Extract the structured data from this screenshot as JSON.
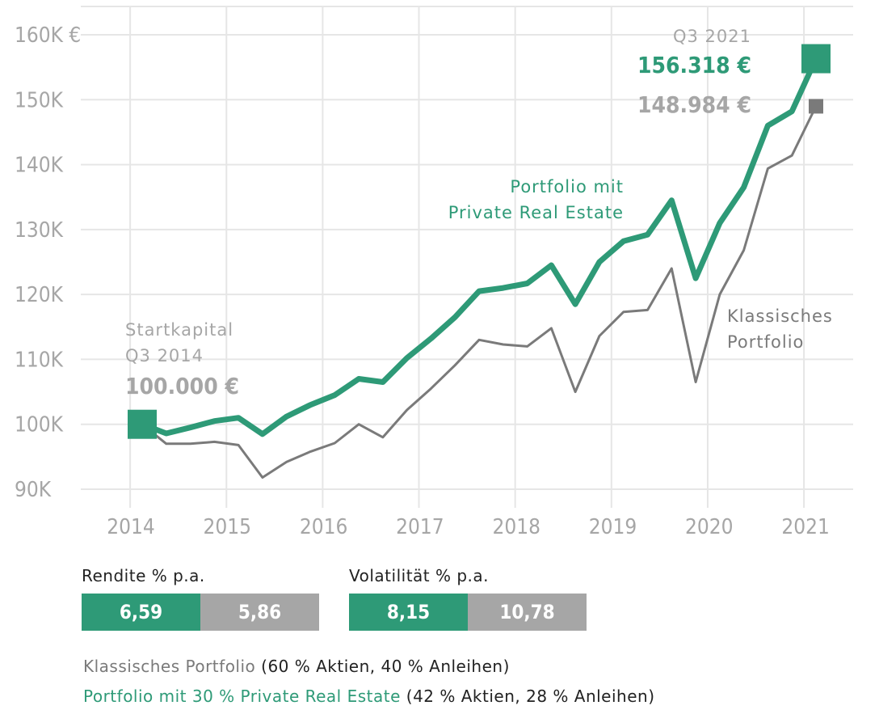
{
  "chart_data": {
    "type": "line",
    "ylim": [
      90000,
      160000
    ],
    "y_ticks": [
      {
        "value": 90000,
        "label": "90K"
      },
      {
        "value": 100000,
        "label": "100K"
      },
      {
        "value": 110000,
        "label": "110K"
      },
      {
        "value": 120000,
        "label": "120K"
      },
      {
        "value": 130000,
        "label": "130K"
      },
      {
        "value": 140000,
        "label": "140K"
      },
      {
        "value": 150000,
        "label": "150K"
      },
      {
        "value": 160000,
        "label": "160K €"
      }
    ],
    "x_ticks": [
      "2014",
      "2015",
      "2016",
      "2017",
      "2018",
      "2019",
      "2020",
      "2021"
    ],
    "x_quarters": [
      "Q3 2014",
      "Q4 2014",
      "Q1 2015",
      "Q2 2015",
      "Q3 2015",
      "Q4 2015",
      "Q1 2016",
      "Q2 2016",
      "Q3 2016",
      "Q4 2016",
      "Q1 2017",
      "Q2 2017",
      "Q3 2017",
      "Q4 2017",
      "Q1 2018",
      "Q2 2018",
      "Q3 2018",
      "Q4 2018",
      "Q1 2019",
      "Q2 2019",
      "Q3 2019",
      "Q4 2019",
      "Q1 2020",
      "Q2 2020",
      "Q3 2020",
      "Q4 2020",
      "Q1 2021",
      "Q2 2021",
      "Q3 2021"
    ],
    "grid": true,
    "series": [
      {
        "name": "Portfolio mit Private Real Estate",
        "color": "#2e9a77",
        "values": [
          100000,
          98600,
          99500,
          100500,
          101000,
          98500,
          101200,
          103000,
          104500,
          107000,
          106500,
          110200,
          113200,
          116500,
          120500,
          121000,
          121700,
          124500,
          118500,
          125000,
          128200,
          129200,
          134500,
          122500,
          131000,
          136500,
          146000,
          148200,
          156318
        ]
      },
      {
        "name": "Klassisches Portfolio",
        "color": "#7a7a7a",
        "values": [
          100000,
          97000,
          97000,
          97300,
          96800,
          91800,
          94200,
          95800,
          97100,
          100000,
          98000,
          102200,
          105500,
          109100,
          113000,
          112300,
          112000,
          114800,
          105000,
          113600,
          117300,
          117600,
          124000,
          106500,
          120000,
          126800,
          139400,
          141400,
          148984
        ]
      }
    ],
    "annotations": {
      "start_label_1": "Startkapital",
      "start_label_2": "Q3 2014",
      "start_value": "100.000 €",
      "end_label": "Q3 2021",
      "end_value_green": "156.318 €",
      "end_value_grey": "148.984 €",
      "green_line_label_1": "Portfolio mit",
      "green_line_label_2": "Private Real Estate",
      "grey_line_label_1": "Klassisches",
      "grey_line_label_2": "Portfolio"
    }
  },
  "metrics": [
    {
      "label": "Rendite % p.a.",
      "green_value": "6,59",
      "grey_value": "5,86"
    },
    {
      "label": "Volatilität % p.a.",
      "green_value": "8,15",
      "grey_value": "10,78"
    }
  ],
  "legend": {
    "classic_name": "Klassisches Portfolio",
    "classic_detail": " (60 % Aktien, 40 % Anleihen)",
    "pre_name": "Portfolio mit 30 % Private Real Estate",
    "pre_detail": " (42 % Aktien, 28 % Anleihen)"
  },
  "colors": {
    "green": "#2e9a77",
    "grey": "#a6a6a6",
    "grey_dark": "#7a7a7a",
    "grid": "#e6e6e6"
  }
}
